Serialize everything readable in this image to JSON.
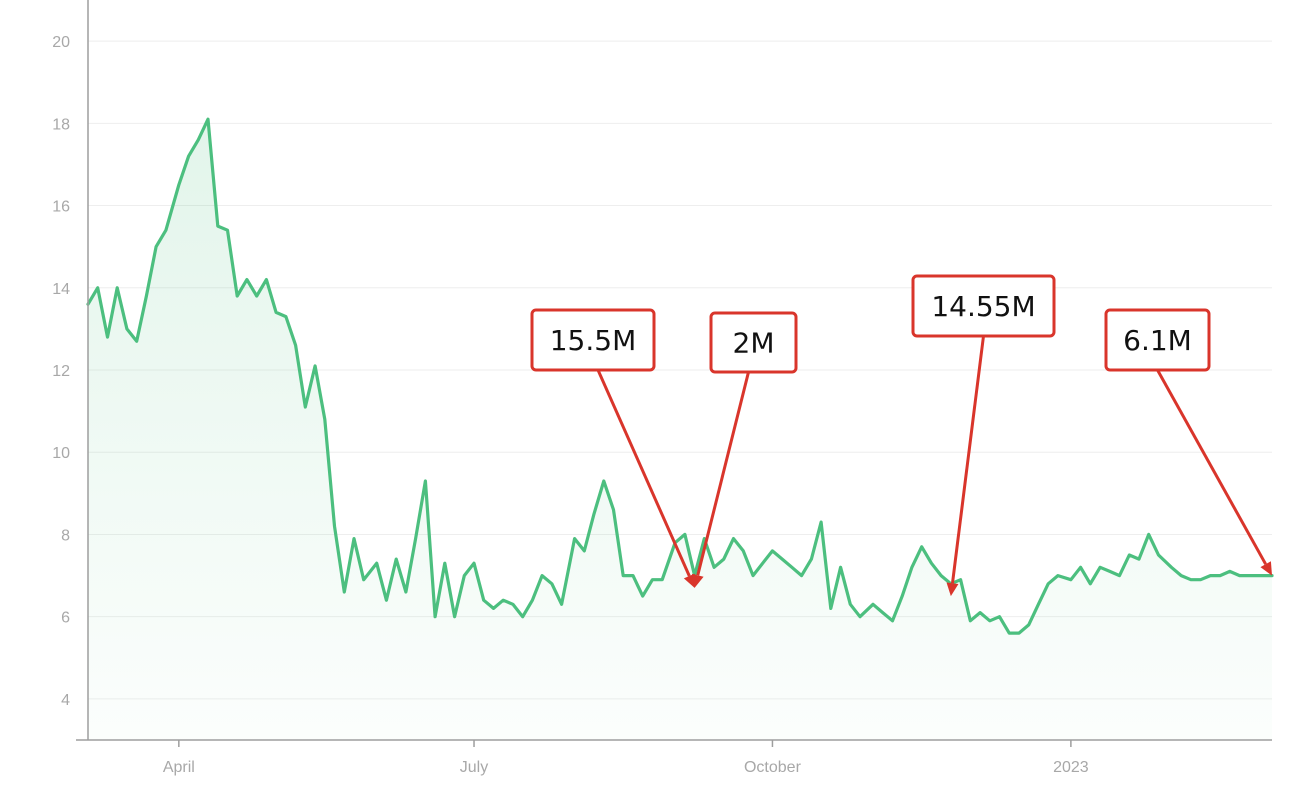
{
  "chart_data": {
    "type": "area",
    "title": "",
    "xlabel": "",
    "ylabel": "",
    "x_range": [
      "2022-03-04",
      "2023-03-04"
    ],
    "ylim": [
      3,
      21
    ],
    "y_ticks": [
      4,
      6,
      8,
      10,
      12,
      14,
      16,
      18,
      20
    ],
    "y_tick_labels": [
      "4",
      "6",
      "8",
      "10",
      "12",
      "14",
      "16",
      "18",
      "20"
    ],
    "x_ticks": [
      {
        "date": "2022-04-01",
        "label": "April"
      },
      {
        "date": "2022-07-01",
        "label": "July"
      },
      {
        "date": "2022-10-01",
        "label": "October"
      },
      {
        "date": "2023-01-01",
        "label": "2023"
      }
    ],
    "grid": true,
    "line_color": "#4cbf7f",
    "annotation_color": "#d9352b",
    "series": [
      {
        "x": [
          "2022-03-04",
          "2022-03-07",
          "2022-03-10",
          "2022-03-13",
          "2022-03-16",
          "2022-03-19",
          "2022-03-22",
          "2022-03-25",
          "2022-03-28",
          "2022-04-01",
          "2022-04-04",
          "2022-04-07",
          "2022-04-10",
          "2022-04-13",
          "2022-04-16",
          "2022-04-19",
          "2022-04-22",
          "2022-04-25",
          "2022-04-28",
          "2022-05-01",
          "2022-05-04",
          "2022-05-07",
          "2022-05-10",
          "2022-05-13",
          "2022-05-16",
          "2022-05-19",
          "2022-05-22",
          "2022-05-25",
          "2022-05-28",
          "2022-06-01",
          "2022-06-04",
          "2022-06-07",
          "2022-06-10",
          "2022-06-13",
          "2022-06-16",
          "2022-06-19",
          "2022-06-22",
          "2022-06-25",
          "2022-06-28",
          "2022-07-01",
          "2022-07-04",
          "2022-07-07",
          "2022-07-10",
          "2022-07-13",
          "2022-07-16",
          "2022-07-19",
          "2022-07-22",
          "2022-07-25",
          "2022-07-28",
          "2022-08-01",
          "2022-08-04",
          "2022-08-07",
          "2022-08-10",
          "2022-08-13",
          "2022-08-16",
          "2022-08-19",
          "2022-08-22",
          "2022-08-25",
          "2022-08-28",
          "2022-09-01",
          "2022-09-04",
          "2022-09-07",
          "2022-09-10",
          "2022-09-13",
          "2022-09-16",
          "2022-09-19",
          "2022-09-22",
          "2022-09-25",
          "2022-09-28",
          "2022-10-01",
          "2022-10-04",
          "2022-10-07",
          "2022-10-10",
          "2022-10-13",
          "2022-10-16",
          "2022-10-19",
          "2022-10-22",
          "2022-10-25",
          "2022-10-28",
          "2022-11-01",
          "2022-11-04",
          "2022-11-07",
          "2022-11-10",
          "2022-11-13",
          "2022-11-16",
          "2022-11-19",
          "2022-11-22",
          "2022-11-25",
          "2022-11-28",
          "2022-12-01",
          "2022-12-04",
          "2022-12-07",
          "2022-12-10",
          "2022-12-13",
          "2022-12-16",
          "2022-12-19",
          "2022-12-22",
          "2022-12-25",
          "2022-12-28",
          "2023-01-01",
          "2023-01-04",
          "2023-01-07",
          "2023-01-10",
          "2023-01-13",
          "2023-01-16",
          "2023-01-19",
          "2023-01-22",
          "2023-01-25",
          "2023-01-28",
          "2023-02-01",
          "2023-02-04",
          "2023-02-07",
          "2023-02-10",
          "2023-02-13",
          "2023-02-16",
          "2023-02-19",
          "2023-02-22",
          "2023-02-25",
          "2023-02-28",
          "2023-03-04"
        ],
        "values": [
          13.6,
          14.0,
          12.8,
          14.0,
          13.0,
          12.7,
          13.8,
          15.0,
          15.4,
          16.5,
          17.2,
          17.6,
          18.1,
          15.5,
          15.4,
          13.8,
          14.2,
          13.8,
          14.2,
          13.4,
          13.3,
          12.6,
          11.1,
          12.1,
          10.8,
          8.2,
          6.6,
          7.9,
          6.9,
          7.3,
          6.4,
          7.4,
          6.6,
          7.9,
          9.3,
          6.0,
          7.3,
          6.0,
          7.0,
          7.3,
          6.4,
          6.2,
          6.4,
          6.3,
          6.0,
          6.4,
          7.0,
          6.8,
          6.3,
          7.9,
          7.6,
          8.5,
          9.3,
          8.6,
          7.0,
          7.0,
          6.5,
          6.9,
          6.9,
          7.8,
          8.0,
          7.0,
          7.9,
          7.2,
          7.4,
          7.9,
          7.6,
          7.0,
          7.3,
          7.6,
          7.4,
          7.2,
          7.0,
          7.4,
          8.3,
          6.2,
          7.2,
          6.3,
          6.0,
          6.3,
          6.1,
          5.9,
          6.5,
          7.2,
          7.7,
          7.3,
          7.0,
          6.8,
          6.9,
          5.9,
          6.1,
          5.9,
          6.0,
          5.6,
          5.6,
          5.8,
          6.3,
          6.8,
          7.0,
          6.9,
          7.2,
          6.8,
          7.2,
          7.1,
          7.0,
          7.5,
          7.4,
          8.0,
          7.5,
          7.2,
          7.0,
          6.9,
          6.9,
          7.0,
          7.0,
          7.1,
          7.0,
          7.0,
          7.0,
          7.0
        ]
      }
    ],
    "annotations": [
      {
        "label": "15.5M",
        "x": "2022-09-07",
        "y": 6.7
      },
      {
        "label": "2M",
        "x": "2022-09-07",
        "y": 6.7
      },
      {
        "label": "14.55M",
        "x": "2022-11-25",
        "y": 6.5
      },
      {
        "label": "6.1M",
        "x": "2023-03-04",
        "y": 7.0
      }
    ]
  }
}
